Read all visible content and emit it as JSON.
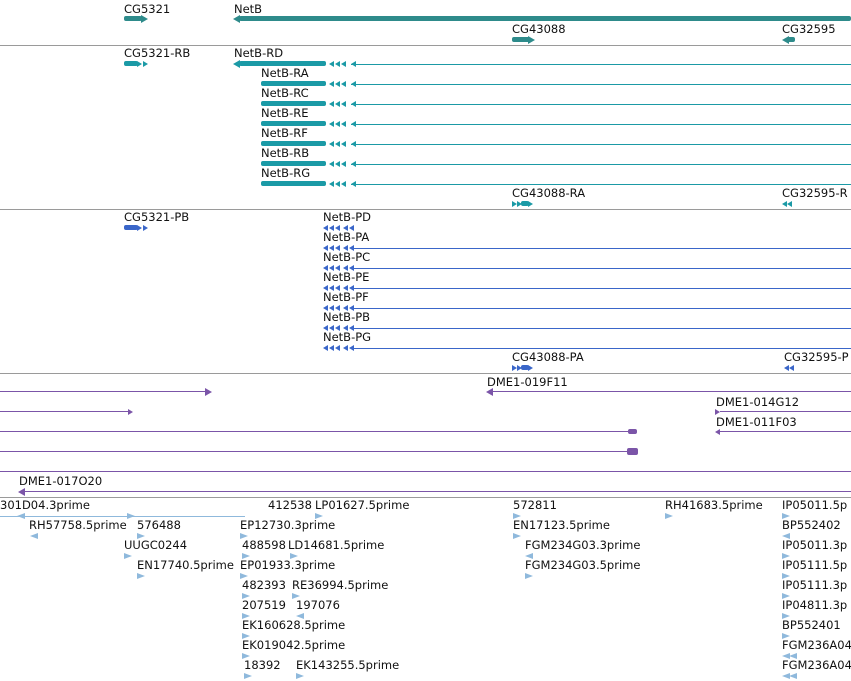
{
  "colors": {
    "gene": "#2e8b8b",
    "mrna": "#1b9aa6",
    "protein": "#3a66c9",
    "clone": "#7b55a8",
    "est": "#8fb9dc",
    "separator": "#9a9a9a"
  },
  "genes": {
    "cg5321": "CG5321",
    "netb": "NetB",
    "cg43088": "CG43088",
    "cg32595": "CG32595"
  },
  "transcripts": {
    "cg5321_rb": "CG5321-RB",
    "netb_rd": "NetB-RD",
    "netb_ra": "NetB-RA",
    "netb_rc": "NetB-RC",
    "netb_re": "NetB-RE",
    "netb_rf": "NetB-RF",
    "netb_rb": "NetB-RB",
    "netb_rg": "NetB-RG",
    "cg43088_ra": "CG43088-RA",
    "cg32595_r": "CG32595-R"
  },
  "proteins": {
    "cg5321_pb": "CG5321-PB",
    "netb_pd": "NetB-PD",
    "netb_pa": "NetB-PA",
    "netb_pc": "NetB-PC",
    "netb_pe": "NetB-PE",
    "netb_pf": "NetB-PF",
    "netb_pb": "NetB-PB",
    "netb_pg": "NetB-PG",
    "cg43088_pa": "CG43088-PA",
    "cg32595_p": "CG32595-P"
  },
  "clones": {
    "dme1_019f11": "DME1-019F11",
    "dme1_014g12": "DME1-014G12",
    "dme1_011f03": "DME1-011F03",
    "dme1_017o20": "DME1-017O20"
  },
  "ests": {
    "e01": "301D04.3prime",
    "e02": "412538",
    "e03": "LP01627.5prime",
    "e04": "572811",
    "e05": "RH41683.5prime",
    "e06": "IP05011.5p",
    "e07": "RH57758.5prime",
    "e08": "576488",
    "e09": "EP12730.3prime",
    "e10": "EN17123.5prime",
    "e11": "BP552402",
    "e12": "UUGC0244",
    "e13": "488598",
    "e14": "LD14681.5prime",
    "e15": "FGM234G03.3prime",
    "e16": "IP05011.3p",
    "e17": "EN17740.5prime",
    "e18": "EP01933.3prime",
    "e19": "FGM234G03.5prime",
    "e20": "IP05111.5p",
    "e21": "482393",
    "e22": "RE36994.5prime",
    "e23": "IP05111.3p",
    "e24": "207519",
    "e25": "197076",
    "e26": "IP04811.3p",
    "e27": "EK160628.5prime",
    "e28": "BP552401",
    "e29": "EK019042.5prime",
    "e30": "FGM236A04",
    "e31": "18392",
    "e32": "EK143255.5prime",
    "e33": "FGM236A04"
  }
}
